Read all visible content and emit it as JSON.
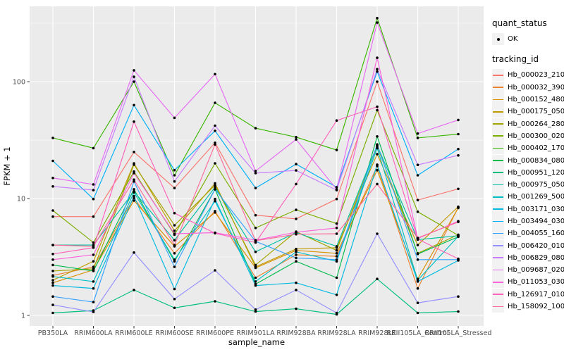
{
  "figure": {
    "panel_bg": "#EBEBEB",
    "grid_color": "#FFFFFF",
    "tick_label_color": "#4D4D4D",
    "axis_title_color": "#000000",
    "point_color": "#000000",
    "legend_key_bg": "#F2F2F2"
  },
  "legend": {
    "quant_title": "quant_status",
    "quant_items": [
      {
        "label": "OK",
        "marker": "black-point"
      }
    ],
    "tracking_title": "tracking_id"
  },
  "chart_data": {
    "type": "line",
    "title": "",
    "xlabel": "sample_name",
    "ylabel": "FPKM + 1",
    "x_scale": "categorical",
    "y_scale": "log10",
    "ylim": [
      0.64,
      440
    ],
    "grid": true,
    "legend_position": "right",
    "yticks": [
      {
        "label": "100",
        "value": 100
      },
      {
        "label": "10",
        "value": 10
      },
      {
        "label": "1",
        "value": 1
      }
    ],
    "y_minor": [
      3.1623,
      31.623,
      316.23
    ],
    "categories": [
      "PB350LA",
      "RRIM600LA",
      "RRIM600LE",
      "RRIM600SE",
      "RRIM600PE",
      "RRIM901LA",
      "RRIM928BA",
      "RRIM928LA",
      "RRIM928LE",
      "RRII105LA_Control",
      "RRII105LA_Stressed"
    ],
    "series": [
      {
        "name": "Hb_000023_210",
        "color": "#F8766D",
        "values": [
          7.0,
          7.0,
          25,
          12.3,
          30,
          7.2,
          6.7,
          9.9,
          100,
          9.7,
          12.1
        ]
      },
      {
        "name": "Hb_000032_390",
        "color": "#EA8331",
        "values": [
          2.2,
          2.6,
          10.1,
          3.4,
          7.8,
          2.1,
          3.3,
          3.2,
          19,
          1.7,
          8.4
        ]
      },
      {
        "name": "Hb_000152_480",
        "color": "#D89000",
        "values": [
          1.9,
          2.45,
          9.6,
          3.9,
          7.6,
          2.55,
          3.6,
          3.4,
          17.5,
          2.05,
          8.3
        ]
      },
      {
        "name": "Hb_000175_050",
        "color": "#C09B00",
        "values": [
          2.0,
          2.9,
          20,
          5.3,
          13.5,
          2.6,
          3.7,
          3.8,
          24,
          4.0,
          8.5
        ]
      },
      {
        "name": "Hb_000264_280",
        "color": "#A3A500",
        "values": [
          2.4,
          2.5,
          19.5,
          5.9,
          13,
          2.7,
          5.2,
          3.6,
          28,
          3.4,
          4.9
        ]
      },
      {
        "name": "Hb_000300_020",
        "color": "#7CAE00",
        "values": [
          7.9,
          4.2,
          17,
          4.9,
          20,
          5.6,
          8.0,
          6.1,
          57,
          7.7,
          4.85
        ]
      },
      {
        "name": "Hb_000402_170",
        "color": "#39B600",
        "values": [
          33,
          27,
          100,
          15.8,
          66,
          40,
          33.5,
          26,
          350,
          33,
          35.6
        ]
      },
      {
        "name": "Hb_000834_080",
        "color": "#00BB4E",
        "values": [
          2.7,
          2.4,
          12,
          2.9,
          12,
          1.85,
          2.9,
          2.1,
          34,
          3.35,
          4.7
        ]
      },
      {
        "name": "Hb_000951_120",
        "color": "#00BF7D",
        "values": [
          1.05,
          1.1,
          1.65,
          1.16,
          1.32,
          1.08,
          1.14,
          1.02,
          2.05,
          1.05,
          1.08
        ]
      },
      {
        "name": "Hb_000975_050",
        "color": "#00C1A3",
        "values": [
          4.0,
          4.0,
          11.5,
          4.4,
          12.5,
          3.5,
          5.1,
          3.9,
          28.5,
          4.45,
          4.8
        ]
      },
      {
        "name": "Hb_001269_500",
        "color": "#00BFC4",
        "values": [
          2.15,
          1.95,
          11.3,
          3.0,
          9.5,
          1.95,
          3.5,
          2.9,
          27,
          2.0,
          4.75
        ]
      },
      {
        "name": "Hb_003171_030",
        "color": "#00BAE0",
        "values": [
          1.8,
          1.7,
          10.5,
          1.68,
          9.9,
          1.8,
          1.9,
          1.5,
          19.5,
          1.95,
          2.95
        ]
      },
      {
        "name": "Hb_003494_030",
        "color": "#00B0F6",
        "values": [
          21,
          9.9,
          63,
          17.5,
          38,
          12.3,
          19.7,
          12.5,
          122,
          15.8,
          26.5
        ]
      },
      {
        "name": "Hb_004055_160",
        "color": "#35A2FF",
        "values": [
          1.45,
          1.3,
          14,
          2.6,
          12,
          4.3,
          3.1,
          3.0,
          29,
          3.0,
          3.0
        ]
      },
      {
        "name": "Hb_006420_010",
        "color": "#9590FF",
        "values": [
          1.23,
          1.07,
          3.45,
          1.38,
          2.43,
          1.12,
          1.65,
          1.05,
          5.0,
          1.28,
          1.45
        ]
      },
      {
        "name": "Hb_006829_080",
        "color": "#C77CFF",
        "values": [
          12.7,
          11.8,
          110,
          14,
          42,
          16.5,
          17.4,
          11.8,
          128,
          19.4,
          23.4
        ]
      },
      {
        "name": "Hb_009687_020",
        "color": "#E76BF3",
        "values": [
          15,
          13.2,
          125,
          49,
          116,
          17.2,
          32,
          12,
          320,
          36,
          47
        ]
      },
      {
        "name": "Hb_011053_030",
        "color": "#FA62DB",
        "values": [
          3.0,
          3.3,
          16.5,
          5.0,
          5.1,
          4.4,
          5.15,
          5.6,
          160,
          4.55,
          6.4
        ]
      },
      {
        "name": "Hb_126917_010",
        "color": "#FF62BC",
        "values": [
          3.35,
          3.8,
          45.5,
          7.5,
          5.05,
          4.2,
          13.3,
          46.5,
          61,
          4.5,
          3.05
        ]
      },
      {
        "name": "Hb_158092_100",
        "color": "#FF6A98",
        "values": [
          4.0,
          3.9,
          14.5,
          4.0,
          29,
          4.35,
          4.95,
          5.0,
          13.3,
          4.6,
          6.3
        ]
      }
    ]
  }
}
